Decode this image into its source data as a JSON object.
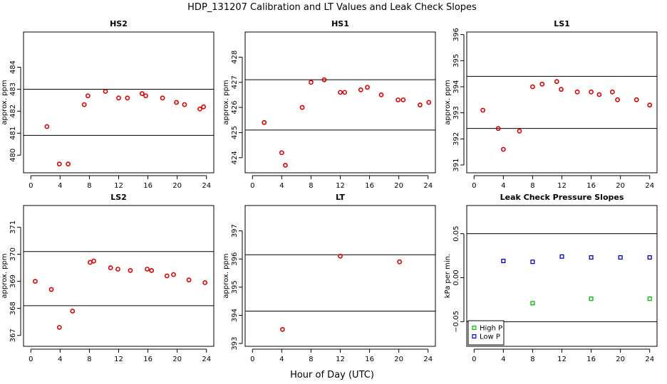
{
  "figure": {
    "title": "HDP_131207  Calibration and LT Values and Leak Check Slopes",
    "xlabel": "Hour of Day (UTC)"
  },
  "chart_data": [
    {
      "type": "scatter",
      "title": "HS2",
      "ylabel": "approx. ppm",
      "xlim": [
        -1,
        25
      ],
      "ylim": [
        479.2,
        485.6
      ],
      "xticks": [
        0,
        4,
        8,
        12,
        16,
        20,
        24
      ],
      "yticks": [
        480,
        481,
        482,
        483,
        484
      ],
      "hlines": [
        483.0,
        480.9
      ],
      "series": [
        {
          "color": "#e00000",
          "x": [
            2.2,
            3.9,
            5.1,
            7.3,
            7.8,
            10.2,
            12.0,
            13.2,
            15.2,
            15.7,
            18.0,
            19.9,
            21.0,
            23.1,
            23.6
          ],
          "y": [
            481.3,
            479.6,
            479.6,
            482.3,
            482.7,
            482.9,
            482.6,
            482.6,
            482.8,
            482.7,
            482.6,
            482.4,
            482.3,
            482.1,
            482.2
          ]
        }
      ]
    },
    {
      "type": "scatter",
      "title": "HS1",
      "ylabel": "approx. ppm",
      "xlim": [
        -1,
        25
      ],
      "ylim": [
        423.4,
        429.0
      ],
      "xticks": [
        0,
        4,
        8,
        12,
        16,
        20,
        24
      ],
      "yticks": [
        424,
        425,
        426,
        427,
        428
      ],
      "hlines": [
        427.1,
        425.1
      ],
      "series": [
        {
          "color": "#e00000",
          "x": [
            1.6,
            4.0,
            4.5,
            6.8,
            8.0,
            9.8,
            12.0,
            12.6,
            14.8,
            15.7,
            17.6,
            19.9,
            20.6,
            22.9,
            24.1
          ],
          "y": [
            425.4,
            424.2,
            423.7,
            426.0,
            427.0,
            427.1,
            426.6,
            426.6,
            426.7,
            426.8,
            426.5,
            426.3,
            426.3,
            426.1,
            426.2
          ]
        }
      ]
    },
    {
      "type": "scatter",
      "title": "LS1",
      "ylabel": "approx. ppm",
      "xlim": [
        -1,
        25
      ],
      "ylim": [
        390.7,
        396.1
      ],
      "xticks": [
        0,
        4,
        8,
        12,
        16,
        20,
        24
      ],
      "yticks": [
        391,
        392,
        393,
        394,
        395,
        396
      ],
      "hlines": [
        394.4,
        392.4
      ],
      "series": [
        {
          "color": "#e00000",
          "x": [
            1.2,
            3.3,
            4.0,
            6.2,
            8.0,
            9.3,
            11.3,
            11.9,
            14.1,
            16.0,
            17.1,
            18.9,
            19.6,
            22.2,
            24.0
          ],
          "y": [
            393.1,
            392.4,
            391.6,
            392.3,
            394.0,
            394.1,
            394.2,
            393.9,
            393.8,
            393.8,
            393.7,
            393.8,
            393.5,
            393.5,
            393.3
          ]
        }
      ]
    },
    {
      "type": "scatter",
      "title": "LS2",
      "ylabel": "approx. ppm",
      "xlim": [
        -1,
        25
      ],
      "ylim": [
        366.6,
        371.8
      ],
      "xticks": [
        0,
        4,
        8,
        12,
        16,
        20,
        24
      ],
      "yticks": [
        367,
        368,
        369,
        370,
        371
      ],
      "hlines": [
        370.1,
        368.1
      ],
      "series": [
        {
          "color": "#e00000",
          "x": [
            0.6,
            2.8,
            3.9,
            5.7,
            8.1,
            8.6,
            10.9,
            11.9,
            13.6,
            15.9,
            16.5,
            18.6,
            19.5,
            21.6,
            23.8
          ],
          "y": [
            369.0,
            368.7,
            367.3,
            367.9,
            369.7,
            369.75,
            369.5,
            369.45,
            369.4,
            369.45,
            369.4,
            369.2,
            369.25,
            369.05,
            368.95
          ]
        }
      ]
    },
    {
      "type": "scatter",
      "title": "LT",
      "ylabel": "approx. ppm",
      "xlim": [
        -1,
        25
      ],
      "ylim": [
        392.9,
        397.9
      ],
      "xticks": [
        0,
        4,
        8,
        12,
        16,
        20,
        24
      ],
      "yticks": [
        393,
        394,
        395,
        396,
        397
      ],
      "hlines": [
        396.15,
        394.15
      ],
      "series": [
        {
          "color": "#e00000",
          "x": [
            4.1,
            12.0,
            20.1
          ],
          "y": [
            393.5,
            396.1,
            395.9
          ]
        }
      ]
    },
    {
      "type": "scatter",
      "title": "Leak Check Pressure Slopes",
      "ylabel": "kPa per min.",
      "xlim": [
        -1,
        25
      ],
      "ylim": [
        -0.078,
        0.082
      ],
      "xticks": [
        0,
        4,
        8,
        12,
        16,
        20,
        24
      ],
      "yticks": [
        -0.05,
        0.0,
        0.05
      ],
      "ytick_labels": [
        "−0.05",
        "0.00",
        "0.05"
      ],
      "hlines": [
        0.05,
        -0.05
      ],
      "legend_position": "bottom-left",
      "series": [
        {
          "name": "High P",
          "color": "#00bb00",
          "x": [
            8,
            16,
            24
          ],
          "y": [
            -0.029,
            -0.024,
            -0.024
          ]
        },
        {
          "name": "Low P",
          "color": "#0000cc",
          "x": [
            4,
            8,
            12,
            16,
            20,
            24
          ],
          "y": [
            0.019,
            0.018,
            0.024,
            0.023,
            0.023,
            0.023
          ]
        }
      ]
    }
  ]
}
